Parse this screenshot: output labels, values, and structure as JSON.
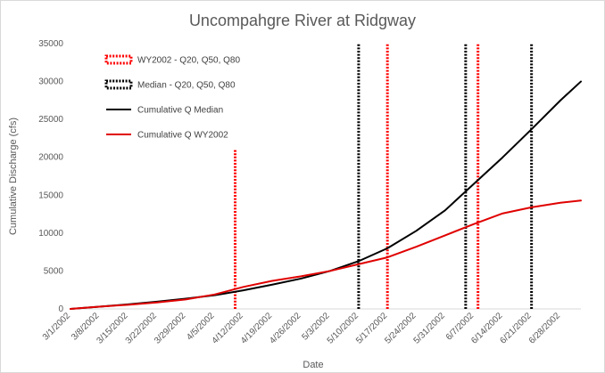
{
  "chart_data": {
    "type": "line",
    "title": "Uncompahgre River at Ridgway",
    "xlabel": "Date",
    "ylabel": "Cumulative Discharge (cfs)",
    "ylim": [
      0,
      35000
    ],
    "xlim": [
      "2002-03-01",
      "2002-07-03"
    ],
    "yticks": [
      0,
      5000,
      10000,
      15000,
      20000,
      25000,
      30000,
      35000
    ],
    "yticks_labels": [
      "0",
      "5000",
      "10000",
      "15000",
      "20000",
      "25000",
      "30000",
      "35000"
    ],
    "xticks": [
      "2002-03-01",
      "2002-03-08",
      "2002-03-15",
      "2002-03-22",
      "2002-03-29",
      "2002-04-05",
      "2002-04-12",
      "2002-04-19",
      "2002-04-26",
      "2002-05-03",
      "2002-05-10",
      "2002-05-17",
      "2002-05-24",
      "2002-05-31",
      "2002-06-07",
      "2002-06-14",
      "2002-06-21",
      "2002-06-28"
    ],
    "xticks_labels": [
      "3/1/2002",
      "3/8/2002",
      "3/15/2002",
      "3/22/2002",
      "3/29/2002",
      "4/5/2002",
      "4/12/2002",
      "4/19/2002",
      "4/26/2002",
      "5/3/2002",
      "5/10/2002",
      "5/17/2002",
      "5/24/2002",
      "5/31/2002",
      "6/7/2002",
      "6/14/2002",
      "6/21/2002",
      "6/28/2002"
    ],
    "grid": false,
    "legend_placement": "top-left",
    "series": [
      {
        "name": "WY2002 - Q20, Q50, Q80",
        "kind": "vertical-lines",
        "style": "dotted",
        "color": "#ff0000",
        "lines": [
          {
            "x": "2002-04-10",
            "y_top": 21000
          },
          {
            "x": "2002-05-17",
            "y_top": 35000
          },
          {
            "x": "2002-06-08",
            "y_top": 35000
          }
        ]
      },
      {
        "name": "Median - Q20, Q50, Q80",
        "kind": "vertical-lines",
        "style": "dotted",
        "color": "#000000",
        "lines": [
          {
            "x": "2002-05-10",
            "y_top": 35000
          },
          {
            "x": "2002-06-05",
            "y_top": 35000
          },
          {
            "x": "2002-06-21",
            "y_top": 35000
          }
        ]
      },
      {
        "name": "Cumulative Q Median",
        "kind": "line",
        "color": "#000000",
        "points": [
          [
            "2002-03-01",
            0
          ],
          [
            "2002-03-08",
            300
          ],
          [
            "2002-03-15",
            600
          ],
          [
            "2002-03-22",
            950
          ],
          [
            "2002-03-29",
            1350
          ],
          [
            "2002-04-05",
            1800
          ],
          [
            "2002-04-12",
            2450
          ],
          [
            "2002-04-19",
            3200
          ],
          [
            "2002-04-26",
            4000
          ],
          [
            "2002-05-03",
            5000
          ],
          [
            "2002-05-10",
            6300
          ],
          [
            "2002-05-17",
            8000
          ],
          [
            "2002-05-24",
            10300
          ],
          [
            "2002-05-31",
            13000
          ],
          [
            "2002-06-07",
            16500
          ],
          [
            "2002-06-14",
            20000
          ],
          [
            "2002-06-21",
            23700
          ],
          [
            "2002-06-28",
            27500
          ],
          [
            "2002-07-03",
            30000
          ]
        ]
      },
      {
        "name": "Cumulative Q WY2002",
        "kind": "line",
        "color": "#e00000",
        "points": [
          [
            "2002-03-01",
            0
          ],
          [
            "2002-03-08",
            300
          ],
          [
            "2002-03-15",
            550
          ],
          [
            "2002-03-22",
            850
          ],
          [
            "2002-03-29",
            1250
          ],
          [
            "2002-04-05",
            1900
          ],
          [
            "2002-04-12",
            2900
          ],
          [
            "2002-04-19",
            3700
          ],
          [
            "2002-04-26",
            4300
          ],
          [
            "2002-05-03",
            5000
          ],
          [
            "2002-05-10",
            5900
          ],
          [
            "2002-05-17",
            6800
          ],
          [
            "2002-05-24",
            8200
          ],
          [
            "2002-05-31",
            9700
          ],
          [
            "2002-06-07",
            11200
          ],
          [
            "2002-06-14",
            12600
          ],
          [
            "2002-06-21",
            13400
          ],
          [
            "2002-06-28",
            14000
          ],
          [
            "2002-07-03",
            14300
          ]
        ]
      }
    ]
  }
}
